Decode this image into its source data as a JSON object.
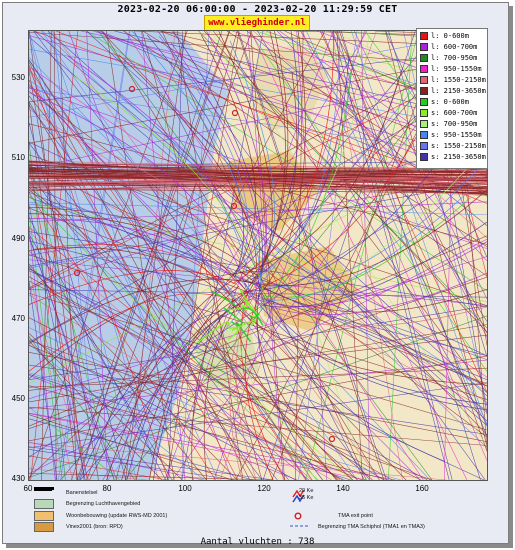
{
  "header": {
    "time_range": "2023-02-20 06:00:00 - 2023-02-20 11:29:59 CET",
    "site_badge": "www.vlieghinder.nl"
  },
  "map": {
    "y_ticks": [
      "530",
      "510",
      "490",
      "470",
      "450",
      "430"
    ],
    "x_ticks": [
      "60",
      "80",
      "100",
      "120",
      "140",
      "160"
    ],
    "town_markers_color": "#cc2222",
    "water_color": "#b7cde8",
    "land_color": "#f2e8c8",
    "built_area_color": "#e6b24a"
  },
  "legend": {
    "items": [
      {
        "label": "l: 0-600m",
        "color": "#ee1111"
      },
      {
        "label": "l: 600-700m",
        "color": "#aa22dd"
      },
      {
        "label": "l: 700-950m",
        "color": "#228822"
      },
      {
        "label": "l: 950-1550m",
        "color": "#ee22cc"
      },
      {
        "label": "l: 1550-2150m",
        "color": "#dd6677"
      },
      {
        "label": "l: 2150-3650m",
        "color": "#882222"
      },
      {
        "label": "s: 0-600m",
        "color": "#22cc22"
      },
      {
        "label": "s: 600-700m",
        "color": "#88ee22"
      },
      {
        "label": "s: 700-950m",
        "color": "#aaee77"
      },
      {
        "label": "s: 950-1550m",
        "color": "#4488ee"
      },
      {
        "label": "s: 1550-2150m",
        "color": "#6677ee"
      },
      {
        "label": "s: 2150-3650m",
        "color": "#4433aa"
      }
    ]
  },
  "bottom_legend": {
    "items": [
      {
        "label": "Banenstelsel",
        "color": "#000000"
      },
      {
        "label": "Begrenzing Luchthavengebied",
        "color": "#b8d8b8"
      },
      {
        "label": "Woonbebouwing (update RWS-MD 2001)",
        "color": "#f0c070"
      },
      {
        "label": "Vinex2001 (bron: RPD)",
        "color": "#d89a40"
      }
    ],
    "noise_label_1": "20 Ke",
    "noise_label_2": "35 Ke",
    "tma_exit_label": "TMA exit point",
    "tma_boundary_label": "Begrenzing TMA Schiphol  (TMA1 en TMA3)"
  },
  "footer": {
    "flight_count": "Aantal vluchten : 738"
  }
}
